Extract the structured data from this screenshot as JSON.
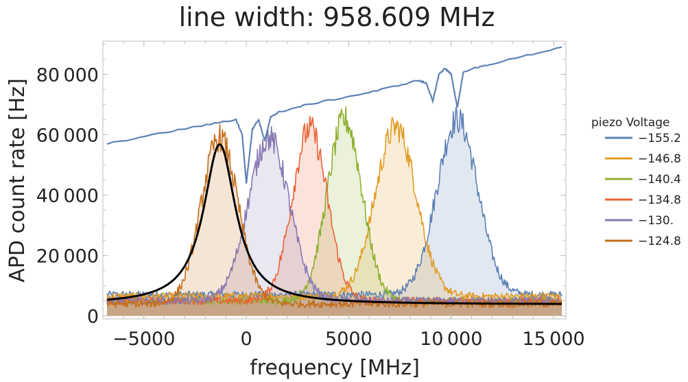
{
  "chart_data": {
    "type": "line",
    "title": "line width: 958.609 MHz",
    "xlabel": "frequency [MHz]",
    "ylabel": "APD count rate [Hz]",
    "xlim": [
      -7000,
      15600
    ],
    "ylim": [
      -1000,
      91000
    ],
    "x_ticks": [
      {
        "value": -5000,
        "label": "−5000"
      },
      {
        "value": 0,
        "label": "0"
      },
      {
        "value": 5000,
        "label": "5000"
      },
      {
        "value": 10000,
        "label": "10 000"
      },
      {
        "value": 15000,
        "label": "15 000"
      }
    ],
    "y_ticks": [
      {
        "value": 0,
        "label": "0"
      },
      {
        "value": 20000,
        "label": "20 000"
      },
      {
        "value": 40000,
        "label": "40 000"
      },
      {
        "value": 60000,
        "label": "60 000"
      },
      {
        "value": 80000,
        "label": "80 000"
      }
    ],
    "legend": {
      "title": "piezo Voltage",
      "placement": "right"
    },
    "series": [
      {
        "name": "−155.2",
        "color": "#5e81b5",
        "center": 10300,
        "sigma": 1000,
        "peak": 58000,
        "baseline": 7000
      },
      {
        "name": "−146.8",
        "color": "#e19c24",
        "center": 7300,
        "sigma": 1000,
        "peak": 56000,
        "baseline": 6500
      },
      {
        "name": "−140.4",
        "color": "#8fb032",
        "center": 4800,
        "sigma": 850,
        "peak": 60000,
        "baseline": 5000
      },
      {
        "name": "−134.8",
        "color": "#eb6235",
        "center": 3100,
        "sigma": 850,
        "peak": 57000,
        "baseline": 5000
      },
      {
        "name": "−130.",
        "color": "#8778b3",
        "center": 1100,
        "sigma": 1000,
        "peak": 54000,
        "baseline": 5000
      },
      {
        "name": "−124.8",
        "color": "#c56e1a",
        "center": -1300,
        "sigma": 900,
        "peak": 55000,
        "baseline": 4000
      }
    ],
    "reference_scan": {
      "color": "#5e81b5",
      "x": [
        -6800,
        -3000,
        -500,
        -200,
        0,
        300,
        600,
        900,
        1200,
        1600,
        3000,
        6000,
        8400,
        8800,
        9100,
        9400,
        9700,
        10000,
        10300,
        10600,
        12000,
        15400
      ],
      "y": [
        57000,
        62000,
        65000,
        60000,
        44000,
        62000,
        65000,
        58000,
        66000,
        67500,
        70000,
        74000,
        78000,
        77000,
        71000,
        80000,
        82000,
        80000,
        69000,
        81000,
        83500,
        89000
      ]
    },
    "fit": {
      "type": "lorentzian",
      "color": "#000000",
      "center": -1300,
      "fwhm": 1917,
      "amplitude": 53000,
      "offset": 3800,
      "x_range": [
        -6800,
        15400
      ]
    }
  }
}
